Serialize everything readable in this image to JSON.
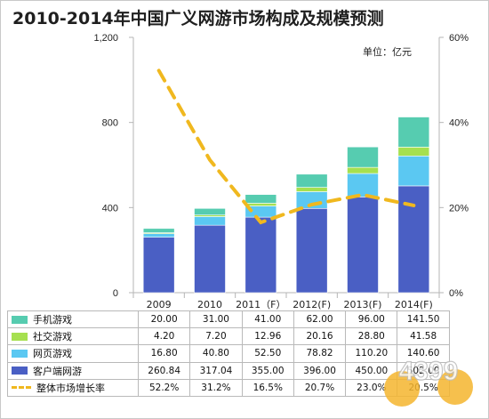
{
  "title": "2010-2014年中国广义网游市场构成及规模预测",
  "unit_label": "单位：亿元",
  "watermark_text": "4399",
  "chart_data": {
    "type": "bar",
    "stacked": true,
    "categories": [
      "2009",
      "2010",
      "2011（F）",
      "2012(F)",
      "2013(F)",
      "2014(F)"
    ],
    "y_left": {
      "ticks": [
        "0",
        "400",
        "800",
        "1,200"
      ],
      "min": 0,
      "max": 1200
    },
    "y_right": {
      "ticks": [
        "0%",
        "20%",
        "40%",
        "60%"
      ],
      "min": 0,
      "max": 60
    },
    "grid": false,
    "series": [
      {
        "name": "客户端网游",
        "color": "#4a5fc4",
        "values": [
          260.84,
          317.04,
          355.0,
          396.0,
          450.0,
          502.0
        ],
        "labels": [
          "260.84",
          "317.04",
          "355.00",
          "396.00",
          "450.00",
          "502.00"
        ]
      },
      {
        "name": "网页游戏",
        "color": "#5bc8f2",
        "values": [
          16.8,
          40.8,
          52.5,
          78.82,
          110.2,
          140.6
        ],
        "labels": [
          "16.80",
          "40.80",
          "52.50",
          "78.82",
          "110.20",
          "140.60"
        ]
      },
      {
        "name": "社交游戏",
        "color": "#a6e050",
        "values": [
          4.2,
          7.2,
          12.96,
          20.16,
          28.8,
          41.58
        ],
        "labels": [
          "4.20",
          "7.20",
          "12.96",
          "20.16",
          "28.80",
          "41.58"
        ]
      },
      {
        "name": "手机游戏",
        "color": "#56ccb0",
        "values": [
          20.0,
          31.0,
          41.0,
          62.0,
          96.0,
          141.5
        ],
        "labels": [
          "20.00",
          "31.00",
          "41.00",
          "62.00",
          "96.00",
          "141.50"
        ]
      }
    ],
    "growth": {
      "name": "整体市场增长率",
      "color": "#f0b81f",
      "values": [
        52.2,
        31.2,
        16.5,
        20.7,
        23.0,
        20.5
      ],
      "labels": [
        "52.2%",
        "31.2%",
        "16.5%",
        "20.7%",
        "23.0%",
        "20.5%"
      ]
    },
    "table_row_order": [
      "手机游戏",
      "社交游戏",
      "网页游戏",
      "客户端网游",
      "整体市场增长率"
    ]
  }
}
